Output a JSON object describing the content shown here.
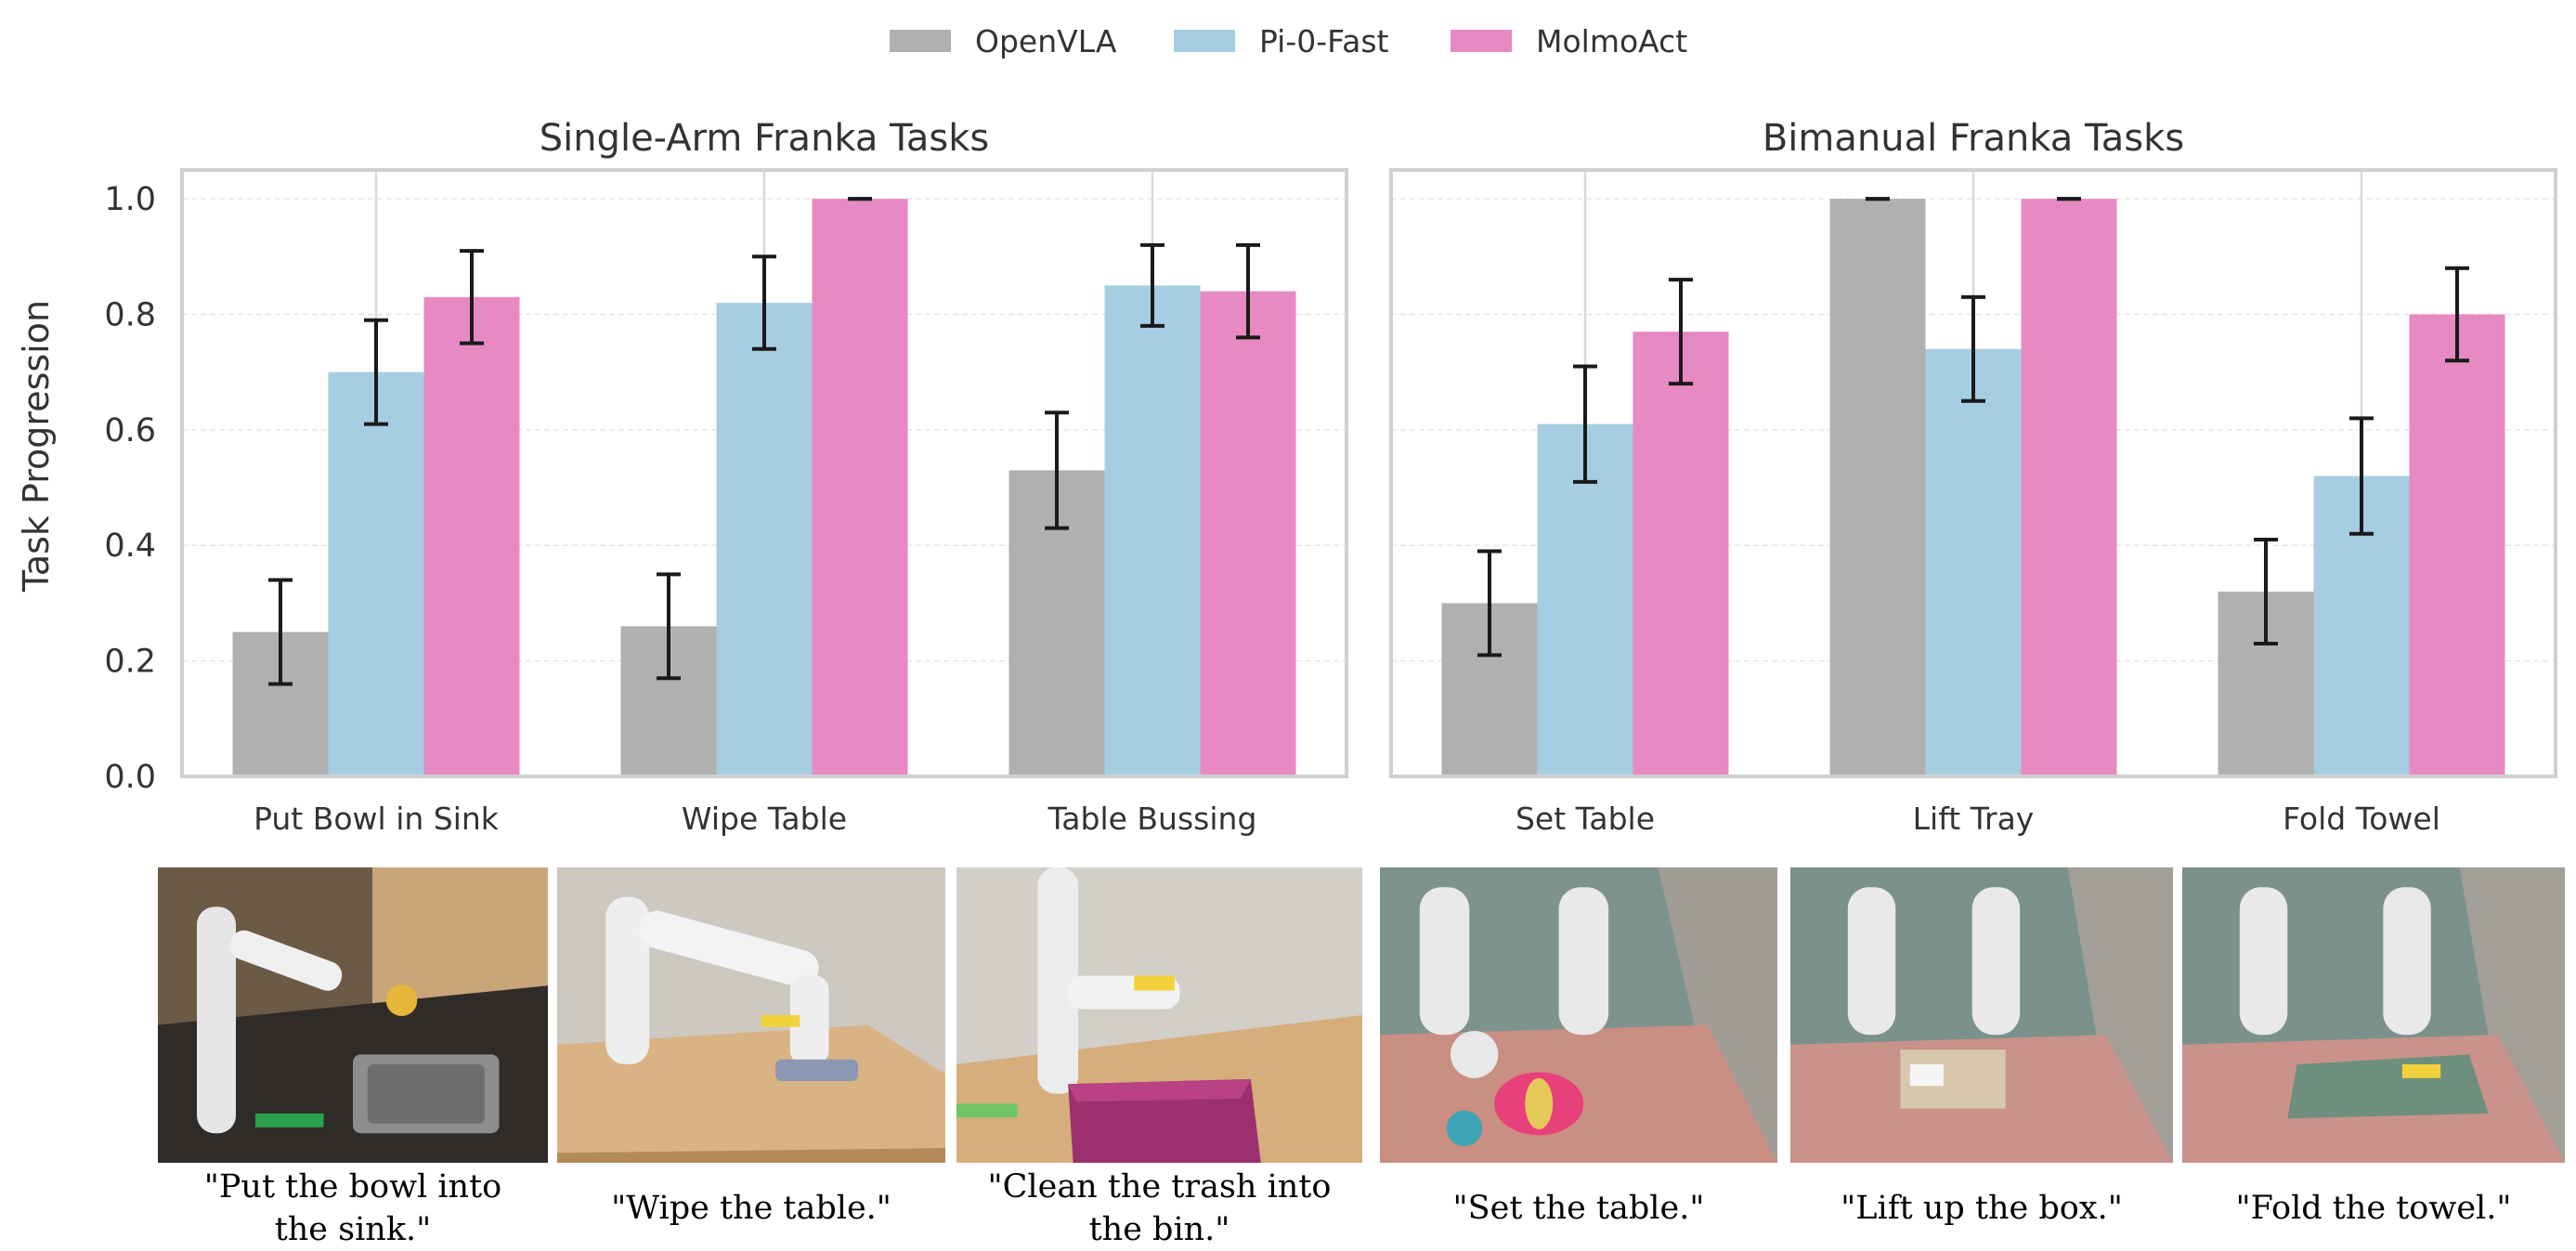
{
  "chart_data": {
    "type": "bar",
    "legend": {
      "placement": "top-center",
      "entries": [
        {
          "name": "OpenVLA",
          "color": "#b0b0b0"
        },
        {
          "name": "Pi-0-Fast",
          "color": "#a6cee3"
        },
        {
          "name": "MolmoAct",
          "color": "#e78ac3"
        }
      ]
    },
    "ylabel": "Task Progression",
    "ylim": [
      0,
      1.05
    ],
    "yticks": [
      "0.0",
      "0.2",
      "0.4",
      "0.6",
      "0.8",
      "1.0"
    ],
    "grid": true,
    "panels": [
      {
        "title": "Single-Arm Franka Tasks",
        "categories": [
          "Put Bowl in Sink",
          "Wipe Table",
          "Table Bussing"
        ],
        "series": [
          {
            "name": "OpenVLA",
            "values": [
              0.25,
              0.26,
              0.53
            ],
            "errors": [
              0.09,
              0.09,
              0.1
            ]
          },
          {
            "name": "Pi-0-Fast",
            "values": [
              0.7,
              0.82,
              0.85
            ],
            "errors": [
              0.09,
              0.08,
              0.07
            ]
          },
          {
            "name": "MolmoAct",
            "values": [
              0.83,
              1.0,
              0.84
            ],
            "errors": [
              0.08,
              0.0,
              0.08
            ]
          }
        ]
      },
      {
        "title": "Bimanual Franka Tasks",
        "categories": [
          "Set Table",
          "Lift Tray",
          "Fold Towel"
        ],
        "series": [
          {
            "name": "OpenVLA",
            "values": [
              0.3,
              1.0,
              0.32
            ],
            "errors": [
              0.09,
              0.0,
              0.09
            ]
          },
          {
            "name": "Pi-0-Fast",
            "values": [
              0.61,
              0.74,
              0.52
            ],
            "errors": [
              0.1,
              0.09,
              0.1
            ]
          },
          {
            "name": "MolmoAct",
            "values": [
              0.77,
              1.0,
              0.8
            ],
            "errors": [
              0.09,
              0.0,
              0.08
            ]
          }
        ]
      }
    ]
  },
  "photos": [
    {
      "caption": [
        "\"Put the bowl into",
        "the sink.\""
      ]
    },
    {
      "caption": [
        "\"Wipe the table.\""
      ]
    },
    {
      "caption": [
        "\"Clean the trash into",
        "the bin.\""
      ]
    },
    {
      "caption": [
        "\"Set the table.\""
      ]
    },
    {
      "caption": [
        "\"Lift up the box.\""
      ]
    },
    {
      "caption": [
        "\"Fold the towel.\""
      ]
    }
  ]
}
